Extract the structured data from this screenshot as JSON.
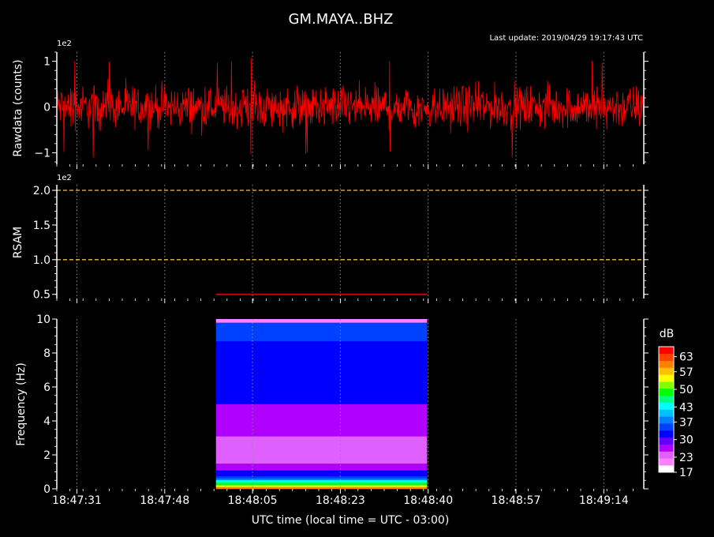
{
  "figure": {
    "title": "GM.MAYA..BHZ",
    "last_update": "Last update: 2019/04/29 19:17:43 UTC",
    "xlabel": "UTC time (local time = UTC - 03:00)",
    "x_ticks": [
      "18:47:31",
      "18:47:48",
      "18:48:05",
      "18:48:23",
      "18:48:40",
      "18:48:57",
      "18:49:14"
    ]
  },
  "chart_data": [
    {
      "type": "line",
      "name": "rawdata",
      "ylabel": "Rawdata (counts)",
      "scale_label": "1e2",
      "ylim": [
        -1.25,
        1.2
      ],
      "y_ticks": [
        -1,
        0,
        1
      ],
      "y_tick_labels": [
        "−1",
        "0",
        "1"
      ],
      "series": [
        {
          "signal": "noise",
          "approx_amplitude": 0.6,
          "max_peak": 1.1,
          "color": "#ff0000"
        }
      ],
      "vertical_grid": "dotted",
      "grid_color": "#888888"
    },
    {
      "type": "line",
      "name": "rsam",
      "ylabel": "RSAM",
      "scale_label": "1e2",
      "ylim": [
        0.44,
        2.08
      ],
      "y_ticks": [
        0.5,
        1.0,
        1.5,
        2.0
      ],
      "y_tick_labels": [
        "0.5",
        "1.0",
        "1.5",
        "2.0"
      ],
      "thresholds": [
        {
          "value": 1.0,
          "color": "#f0c050",
          "style": "dashed"
        },
        {
          "value": 2.0,
          "color": "#f0c050",
          "style": "dashed"
        }
      ],
      "series": [
        {
          "x": [
            "18:47:58",
            "18:48:39"
          ],
          "y": [
            0.5,
            0.5
          ],
          "color": "#cc0000"
        }
      ]
    },
    {
      "type": "heatmap",
      "name": "spectrogram",
      "ylabel": "Frequency (Hz)",
      "ylim": [
        0,
        10
      ],
      "y_ticks": [
        0,
        2,
        4,
        6,
        8,
        10
      ],
      "x_range": [
        "18:47:58",
        "18:48:39"
      ],
      "rows": [
        {
          "from": 0.0,
          "to": 0.12,
          "db": 60
        },
        {
          "from": 0.12,
          "to": 0.22,
          "db": 55
        },
        {
          "from": 0.22,
          "to": 0.32,
          "db": 50
        },
        {
          "from": 0.32,
          "to": 0.42,
          "db": 45
        },
        {
          "from": 0.42,
          "to": 0.52,
          "db": 42
        },
        {
          "from": 0.52,
          "to": 0.62,
          "db": 38
        },
        {
          "from": 0.62,
          "to": 0.75,
          "db": 36
        },
        {
          "from": 0.75,
          "to": 0.9,
          "db": 33
        },
        {
          "from": 0.9,
          "to": 1.1,
          "db": 31
        },
        {
          "from": 1.1,
          "to": 1.5,
          "db": 26
        },
        {
          "from": 1.5,
          "to": 3.1,
          "db": 24
        },
        {
          "from": 3.1,
          "to": 3.8,
          "db": 27
        },
        {
          "from": 3.8,
          "to": 5.0,
          "db": 28
        },
        {
          "from": 5.0,
          "to": 6.5,
          "db": 31
        },
        {
          "from": 6.5,
          "to": 8.7,
          "db": 32
        },
        {
          "from": 8.7,
          "to": 9.8,
          "db": 35
        },
        {
          "from": 9.8,
          "to": 10.0,
          "db": 22
        }
      ],
      "colorbar": {
        "label": "dB",
        "ticks": [
          17,
          23,
          30,
          37,
          43,
          50,
          57,
          63
        ],
        "range": [
          17,
          67
        ],
        "colors": [
          "#ffffff",
          "#ff80ff",
          "#e060ff",
          "#b000ff",
          "#6000ff",
          "#0000ff",
          "#0040ff",
          "#0080ff",
          "#00c0ff",
          "#00ffff",
          "#00ff80",
          "#00ff00",
          "#80ff00",
          "#ffff00",
          "#ffc000",
          "#ff8000",
          "#ff4000",
          "#ff0000"
        ]
      }
    }
  ]
}
